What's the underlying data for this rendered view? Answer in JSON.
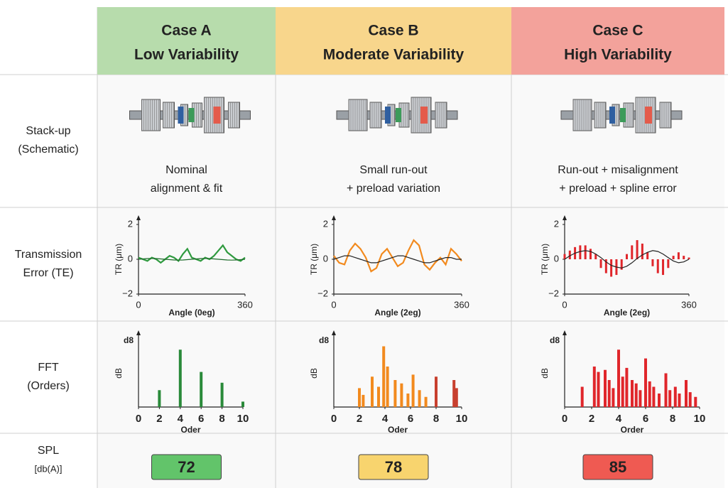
{
  "columns": [
    {
      "case": "Case A",
      "variability": "Low Variability",
      "color": "#b7dcac"
    },
    {
      "case": "Case B",
      "variability": "Moderate Variability",
      "color": "#f8d68c"
    },
    {
      "case": "Case C",
      "variability": "High Variability",
      "color": "#f3a29b"
    }
  ],
  "rows": [
    [
      "Stack-up",
      "(Schematic)"
    ],
    [
      "Transmission",
      "Error (TE)"
    ],
    [
      "FFT",
      "(Orders)"
    ],
    [
      "SPL",
      "[db(A)]"
    ]
  ],
  "descriptions": [
    [
      "Nominal",
      "alignment & fit"
    ],
    [
      "Small run-out",
      "+ preload variation"
    ],
    [
      "Run-out + misalignment",
      "+ preload + spline error"
    ]
  ],
  "spl": [
    {
      "value": 72,
      "color": "#62c46a"
    },
    {
      "value": 78,
      "color": "#f8d46e"
    },
    {
      "value": 85,
      "color": "#ef5a52"
    }
  ],
  "chart_data": [
    {
      "type": "line",
      "xlabel": "Angle (0eg)",
      "ylabel": "TR (μm)",
      "x": [
        0,
        15,
        30,
        45,
        60,
        75,
        90,
        105,
        120,
        135,
        150,
        165,
        180,
        195,
        210,
        225,
        240,
        255,
        270,
        285,
        300,
        315,
        330,
        345,
        360
      ],
      "series": [
        {
          "color": "#2f9a3f",
          "style": "line",
          "values": [
            0.1,
            0.0,
            -0.1,
            0.1,
            0.0,
            -0.2,
            0.0,
            0.2,
            0.1,
            -0.1,
            0.3,
            0.6,
            0.1,
            0.0,
            -0.1,
            0.1,
            0.0,
            0.2,
            0.5,
            0.8,
            0.4,
            0.2,
            0.0,
            -0.1,
            0.1
          ]
        },
        {
          "color": "#1d6b2a",
          "style": "line",
          "values": [
            0,
            0.02,
            0.04,
            0.05,
            0.04,
            0.02,
            0,
            -0.02,
            -0.04,
            -0.05,
            -0.04,
            -0.02,
            0,
            0.02,
            0.04,
            0.05,
            0.04,
            0.02,
            0,
            -0.02,
            -0.04,
            -0.05,
            -0.04,
            -0.02,
            0
          ]
        }
      ],
      "xlim": [
        0,
        360
      ],
      "xticks": [
        0,
        360
      ],
      "ylim": [
        -2,
        2
      ],
      "yticks": [
        {
          "value": -2,
          "label": "−2"
        },
        0,
        2
      ]
    },
    {
      "type": "line",
      "xlabel": "Angle (2eg)",
      "ylabel": "TR (μm)",
      "x": [
        0,
        15,
        30,
        45,
        60,
        75,
        90,
        105,
        120,
        135,
        150,
        165,
        180,
        195,
        210,
        225,
        240,
        255,
        270,
        285,
        300,
        315,
        330,
        345,
        360
      ],
      "series": [
        {
          "color": "#f28a1e",
          "style": "line",
          "values": [
            0.2,
            -0.2,
            -0.3,
            0.5,
            0.9,
            0.6,
            0.1,
            -0.7,
            -0.5,
            0.3,
            0.6,
            0.1,
            -0.4,
            -0.2,
            0.5,
            1.1,
            0.8,
            -0.3,
            -0.6,
            -0.2,
            0.1,
            -0.3,
            0.6,
            0.3,
            -0.1
          ]
        },
        {
          "color": "#222222",
          "style": "line",
          "values": [
            0,
            0.1,
            0.2,
            0.2,
            0.1,
            0,
            -0.1,
            -0.2,
            -0.2,
            -0.1,
            0,
            0.1,
            0.2,
            0.2,
            0.1,
            0,
            -0.1,
            -0.2,
            -0.2,
            -0.1,
            0,
            0.1,
            0.1,
            0,
            0
          ]
        }
      ],
      "xlim": [
        0,
        360
      ],
      "xticks": [
        0,
        360
      ],
      "ylim": [
        -2,
        2
      ],
      "yticks": [
        {
          "value": -2,
          "label": "−2"
        },
        0,
        2
      ]
    },
    {
      "type": "line",
      "xlabel": "Angle (2eg)",
      "ylabel": "TR (μm)",
      "x": [
        0,
        15,
        30,
        45,
        60,
        75,
        90,
        105,
        120,
        135,
        150,
        165,
        180,
        195,
        210,
        225,
        240,
        255,
        270,
        285,
        300,
        315,
        330,
        345,
        360
      ],
      "series": [
        {
          "color": "#e0262b",
          "style": "stem",
          "values": [
            0.3,
            0.5,
            0.7,
            0.8,
            0.8,
            0.6,
            0.3,
            -0.5,
            -0.8,
            -1.0,
            -0.9,
            -0.6,
            0.3,
            0.8,
            1.1,
            0.9,
            0.4,
            -0.4,
            -0.8,
            -0.9,
            -0.5,
            0.2,
            0.4,
            0.2,
            0.1
          ]
        },
        {
          "color": "#222222",
          "style": "line",
          "values": [
            0,
            0.2,
            0.35,
            0.45,
            0.5,
            0.45,
            0.3,
            0.1,
            -0.15,
            -0.35,
            -0.45,
            -0.5,
            -0.4,
            -0.2,
            0.05,
            0.25,
            0.4,
            0.5,
            0.45,
            0.3,
            0.1,
            -0.1,
            -0.2,
            -0.15,
            0
          ]
        }
      ],
      "xlim": [
        0,
        360
      ],
      "xticks": [
        0,
        360
      ],
      "ylim": [
        -2,
        2
      ],
      "yticks": [
        {
          "value": -2,
          "label": "−2"
        },
        0,
        2
      ]
    },
    {
      "type": "bar",
      "xlabel": "Oder",
      "ylabel": "dB",
      "ylabel_top": "d8",
      "series": [
        {
          "color": "#2a8a3a",
          "x": [
            2,
            4,
            6,
            8,
            10
          ],
          "values": [
            25,
            85,
            52,
            36,
            8
          ]
        }
      ],
      "xlim": [
        0,
        10
      ],
      "xticks": [
        0,
        2,
        4,
        6,
        8,
        10
      ],
      "ylim": [
        0,
        100
      ]
    },
    {
      "type": "bar",
      "xlabel": "Oder",
      "ylabel": "dB",
      "ylabel_top": "d8",
      "series": [
        {
          "color": "#f28a1e",
          "x": [
            2,
            2.3,
            3,
            3.5,
            3.9,
            4.2,
            4.8,
            5.3,
            5.8,
            6.2,
            6.7,
            7.2
          ],
          "values": [
            28,
            18,
            45,
            30,
            90,
            60,
            40,
            35,
            20,
            48,
            25,
            15
          ]
        },
        {
          "color": "#c8402f",
          "x": [
            8,
            9.4,
            9.6
          ],
          "values": [
            45,
            40,
            28
          ]
        }
      ],
      "xlim": [
        0,
        10
      ],
      "xticks": [
        0,
        2,
        4,
        6,
        8,
        10
      ],
      "ylim": [
        0,
        100
      ]
    },
    {
      "type": "bar",
      "xlabel": "Order",
      "ylabel": "dB",
      "ylabel_top": "d8",
      "series": [
        {
          "color": "#e0262b",
          "x": [
            1.3,
            2.2,
            2.5,
            3.0,
            3.3,
            3.6,
            4.0,
            4.3,
            4.6,
            5.0,
            5.3,
            5.6,
            6.0,
            6.3,
            6.6,
            7.0,
            7.5,
            7.8,
            8.2,
            8.5,
            9.0,
            9.3,
            9.7
          ],
          "values": [
            30,
            60,
            52,
            55,
            40,
            28,
            85,
            45,
            58,
            40,
            35,
            25,
            72,
            38,
            30,
            20,
            50,
            25,
            30,
            20,
            40,
            22,
            15
          ]
        }
      ],
      "xlim": [
        0,
        10
      ],
      "xticks": [
        0,
        2,
        4,
        6,
        8,
        10
      ],
      "ylim": [
        0,
        100
      ]
    }
  ]
}
